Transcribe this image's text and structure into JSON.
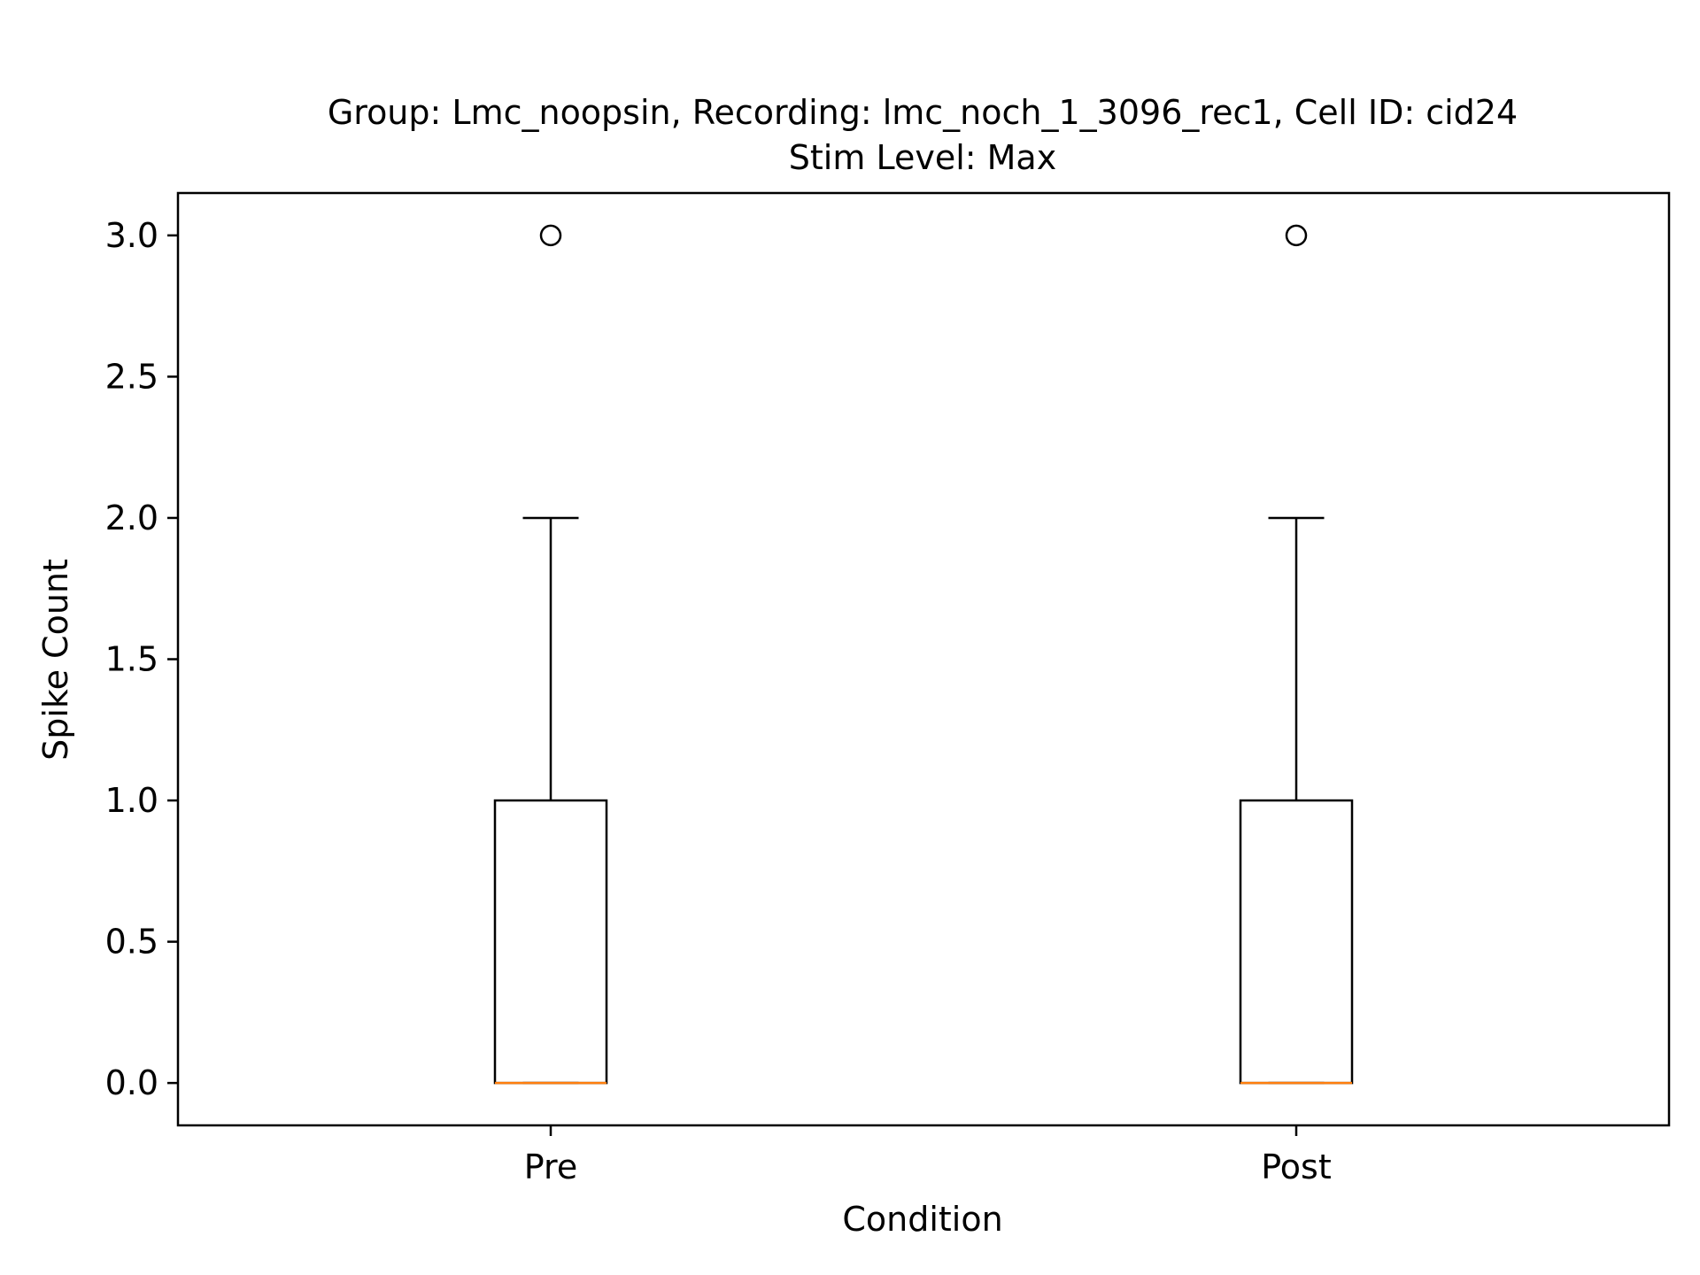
{
  "chart_data": {
    "type": "box",
    "title_line1": "Group: Lmc_noopsin, Recording: lmc_noch_1_3096_rec1, Cell ID: cid24",
    "title_line2": "Stim Level: Max",
    "xlabel": "Condition",
    "ylabel": "Spike Count",
    "categories": [
      "Pre",
      "Post"
    ],
    "ylim": [
      -0.15,
      3.15
    ],
    "yticks": [
      0.0,
      0.5,
      1.0,
      1.5,
      2.0,
      2.5,
      3.0
    ],
    "ytick_labels": [
      "0.0",
      "0.5",
      "1.0",
      "1.5",
      "2.0",
      "2.5",
      "3.0"
    ],
    "boxes": [
      {
        "name": "Pre",
        "whisker_low": 0,
        "q1": 0,
        "median": 0,
        "q3": 1,
        "whisker_high": 2,
        "outliers": [
          3
        ]
      },
      {
        "name": "Post",
        "whisker_low": 0,
        "q1": 0,
        "median": 0,
        "q3": 1,
        "whisker_high": 2,
        "outliers": [
          3
        ]
      }
    ],
    "grid": false,
    "colors": {
      "box": "#000000",
      "median": "#ff7f0e"
    }
  }
}
